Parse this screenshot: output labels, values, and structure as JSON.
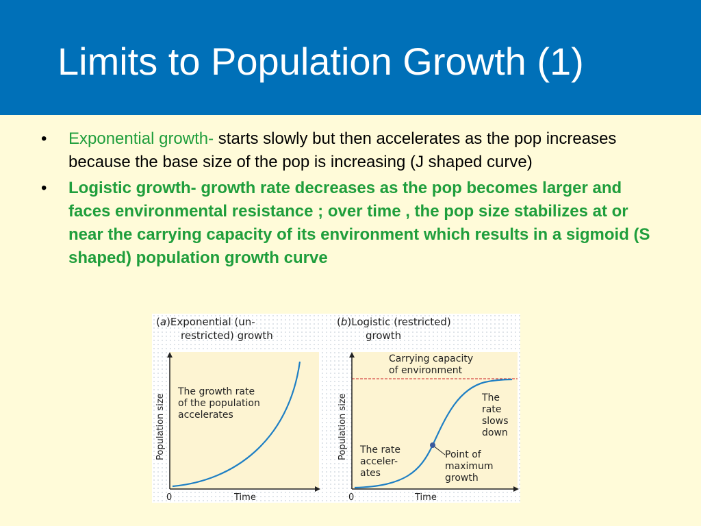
{
  "header": {
    "title": "Limits to Population Growth (1)"
  },
  "bullets": [
    {
      "marker": "•",
      "lead": "Exponential growth-",
      "text": " starts slowly but then accelerates as the pop increases  because the base size of the pop is increasing (J shaped curve)"
    },
    {
      "marker": "•",
      "text": "Logistic growth- growth rate decreases as the pop becomes larger and faces environmental resistance ; over time , the pop size stabilizes at or near the carrying capacity  of its environment which results in a sigmoid (S shaped) population growth curve"
    }
  ],
  "figure": {
    "panel_a": {
      "label": "a",
      "title_line1": "Exponential (un-",
      "title_line2": "restricted) growth",
      "ylabel": "Population size",
      "xlabel": "Time",
      "origin": "0",
      "note_line1": "The growth rate",
      "note_line2": "of the population",
      "note_line3": "accelerates"
    },
    "panel_b": {
      "label": "b",
      "title_line1": "Logistic (restricted)",
      "title_line2": "growth",
      "ylabel": "Population size",
      "xlabel": "Time",
      "origin": "0",
      "capacity_line1": "Carrying capacity",
      "capacity_line2": "of environment",
      "slow_line1": "The",
      "slow_line2": "rate",
      "slow_line3": "slows",
      "slow_line4": "down",
      "accel_line1": "The rate",
      "accel_line2": "acceler-",
      "accel_line3": "ates",
      "point_line1": "Point of",
      "point_line2": "maximum",
      "point_line3": "growth"
    },
    "colors": {
      "plot_bg": "#fdf4d2",
      "curve": "#1e7fc4",
      "capacity_line": "#cc1f24",
      "point": "#3a5a9c"
    }
  }
}
